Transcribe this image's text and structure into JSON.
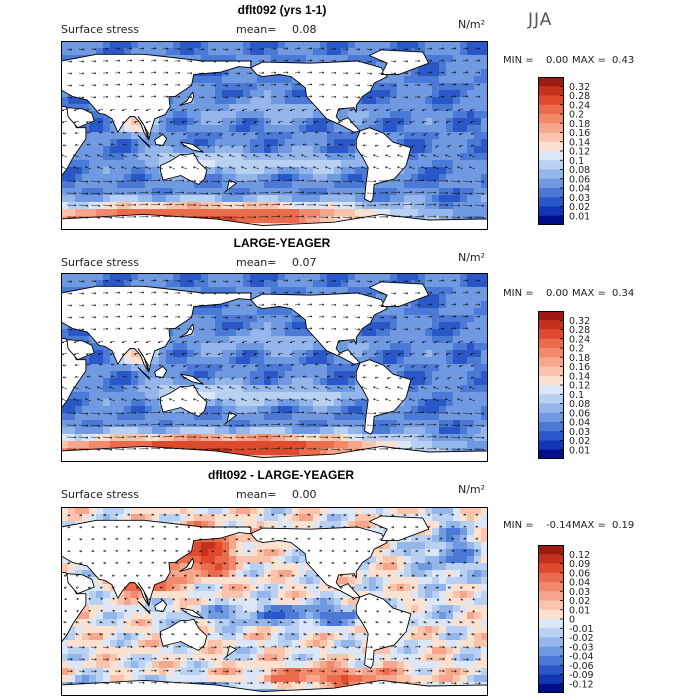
{
  "season": "JJA",
  "colorbar_std": {
    "labels": [
      "0.32",
      "0.28",
      "0.24",
      "0.2",
      "0.18",
      "0.16",
      "0.14",
      "0.12",
      "0.1",
      "0.08",
      "0.06",
      "0.04",
      "0.03",
      "0.02",
      "0.01"
    ],
    "colors": [
      "#9e1a12",
      "#c4321f",
      "#df4a2e",
      "#ea6c4c",
      "#f2896a",
      "#f5a68c",
      "#f9c3ac",
      "#fce0d0",
      "#dbe7f7",
      "#b8d0f1",
      "#94b6ea",
      "#6f99e0",
      "#4a7ad6",
      "#2a58c9",
      "#1236b4",
      "#000f88"
    ]
  },
  "colorbar_diff": {
    "labels": [
      "0.12",
      "0.09",
      "0.06",
      "0.04",
      "0.03",
      "0.02",
      "0.01",
      "0",
      "-0.01",
      "-0.02",
      "-0.03",
      "-0.04",
      "-0.06",
      "-0.09",
      "-0.12"
    ],
    "colors": [
      "#9e1a12",
      "#c4321f",
      "#df4a2e",
      "#ea6c4c",
      "#f2896a",
      "#f5a68c",
      "#f9c3ac",
      "#fce0d0",
      "#dbe7f7",
      "#b8d0f1",
      "#94b6ea",
      "#6f99e0",
      "#4a7ad6",
      "#2a58c9",
      "#1236b4",
      "#000f88"
    ]
  },
  "chart_data": [
    {
      "type": "heatmap",
      "title": "dflt092 (yrs 1-1)",
      "field_label": "Surface stress",
      "mean_label": "mean=",
      "mean_value": "0.08",
      "units": "N/m²",
      "min_label": "MIN =",
      "min_value": "0.00",
      "max_label": "MAX =",
      "max_value": "0.43",
      "colorbar": "std"
    },
    {
      "type": "heatmap",
      "title": "LARGE-YEAGER",
      "field_label": "Surface stress",
      "mean_label": "mean=",
      "mean_value": "0.07",
      "units": "N/m²",
      "min_label": "MIN =",
      "min_value": "0.00",
      "max_label": "MAX =",
      "max_value": "0.34",
      "colorbar": "std"
    },
    {
      "type": "heatmap",
      "title": "dflt092 - LARGE-YEAGER",
      "field_label": "Surface stress",
      "mean_label": "mean=",
      "mean_value": "0.00",
      "units": "N/m²",
      "min_label": "MIN =",
      "min_value": "-0.14",
      "max_label": "MAX =",
      "max_value": "0.19",
      "colorbar": "diff"
    }
  ]
}
